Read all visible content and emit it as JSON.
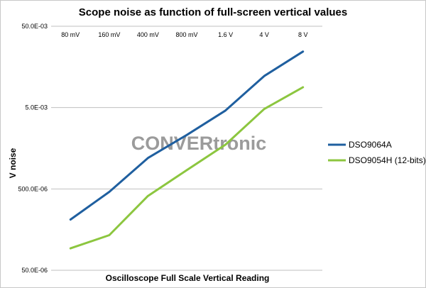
{
  "chart_data": {
    "type": "line",
    "title": "Scope noise as function of full-screen vertical values",
    "xlabel": "Oscilloscope Full Scale Vertical Reading",
    "ylabel": "V noise",
    "y_scale": "log",
    "ylim": [
      5e-05,
      0.05
    ],
    "y_ticks": [
      5e-05,
      0.0005,
      0.005,
      0.05
    ],
    "y_tick_labels": [
      "50.0E-06",
      "500.0E-06",
      "5.0E-03",
      "50.0E-03"
    ],
    "categories": [
      "80 mV",
      "160 mV",
      "400 mV",
      "800 mV",
      "1.6 V",
      "4 V",
      "8 V"
    ],
    "category_label_position": "top",
    "grid": "horizontal",
    "legend_position": "right",
    "series": [
      {
        "name": "DSO9064A",
        "color": "#1F5F9F",
        "values": [
          0.00021,
          0.00046,
          0.0012,
          0.0023,
          0.0046,
          0.0122,
          0.0244
        ]
      },
      {
        "name": "DSO9054H (12-bits)",
        "color": "#8CC63F",
        "values": [
          9.3e-05,
          0.000135,
          0.00041,
          0.00085,
          0.00175,
          0.0048,
          0.0089
        ]
      }
    ]
  },
  "watermark": "CONVERtronic"
}
